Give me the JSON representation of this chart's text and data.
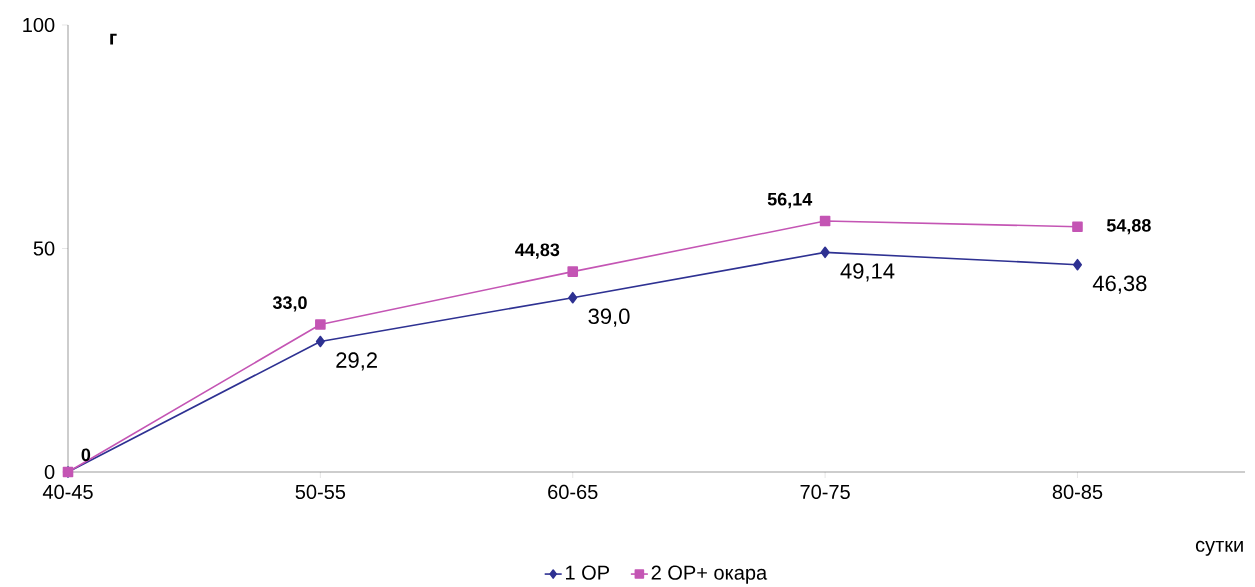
{
  "chart_data": {
    "type": "line",
    "xlabel": "сутки",
    "ylabel": "г",
    "categories": [
      "40-45",
      "50-55",
      "60-65",
      "70-75",
      "80-85"
    ],
    "ylim": [
      0,
      100
    ],
    "yticks": [
      0,
      50,
      100
    ],
    "grid": false,
    "legend": "bottom",
    "series": [
      {
        "name": "1 OP",
        "color": "#2e3192",
        "marker": "diamond",
        "values": [
          0,
          29.2,
          39.0,
          49.14,
          46.38
        ],
        "value_labels": [
          null,
          "29,2",
          "39,0",
          "49,14",
          "46,38"
        ]
      },
      {
        "name": "2 OP+ окара",
        "color": "#c455b4",
        "marker": "square",
        "values": [
          0,
          33.0,
          44.83,
          56.14,
          54.88
        ],
        "value_labels": [
          "0",
          "33,0",
          "44,83",
          "56,14",
          "54,88"
        ]
      }
    ]
  }
}
